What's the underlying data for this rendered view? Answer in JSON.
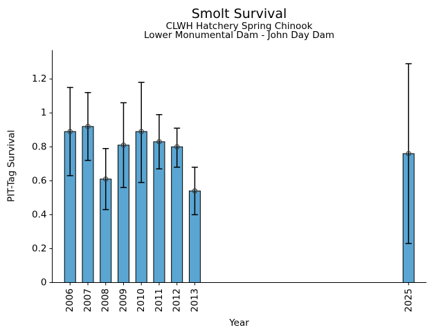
{
  "figure": {
    "title": "Smolt Survival",
    "subtitle_line1": "CLWH Hatchery Spring Chinook",
    "subtitle_line2": "Lower Monumental Dam - John Day Dam",
    "xlabel": "Year",
    "ylabel": "PIT-Tag Survival"
  },
  "chart_data": {
    "type": "bar",
    "title": "Smolt Survival",
    "subtitle": [
      "CLWH Hatchery Spring Chinook",
      "Lower Monumental Dam - John Day Dam"
    ],
    "xlabel": "Year",
    "ylabel": "PIT-Tag Survival",
    "categories": [
      "2006",
      "2007",
      "2008",
      "2009",
      "2010",
      "2011",
      "2012",
      "2013",
      "2025"
    ],
    "values": [
      0.89,
      0.92,
      0.61,
      0.81,
      0.89,
      0.83,
      0.8,
      0.54,
      0.76
    ],
    "error_low": [
      0.63,
      0.72,
      0.43,
      0.56,
      0.59,
      0.67,
      0.68,
      0.4,
      0.23
    ],
    "error_high": [
      1.15,
      1.12,
      0.79,
      1.06,
      1.18,
      0.99,
      0.91,
      0.68,
      1.29
    ],
    "yticks": [
      0,
      0.2,
      0.4,
      0.6,
      0.8,
      1,
      1.2
    ],
    "ytick_labels": [
      "0",
      "0.2",
      "0.4",
      "0.6",
      "0.8",
      "1",
      "1.2"
    ],
    "xlim": [
      2005,
      2026
    ],
    "ylim": [
      0,
      1.37
    ],
    "grid": false,
    "legend": null,
    "bar_color": "#5AA5D2",
    "bar_edge_color": "#000000",
    "errorbar_color": "#000000",
    "marker": "open-circle",
    "marker_edge_color": "#3a3a3a",
    "axis_color": "#000000"
  }
}
